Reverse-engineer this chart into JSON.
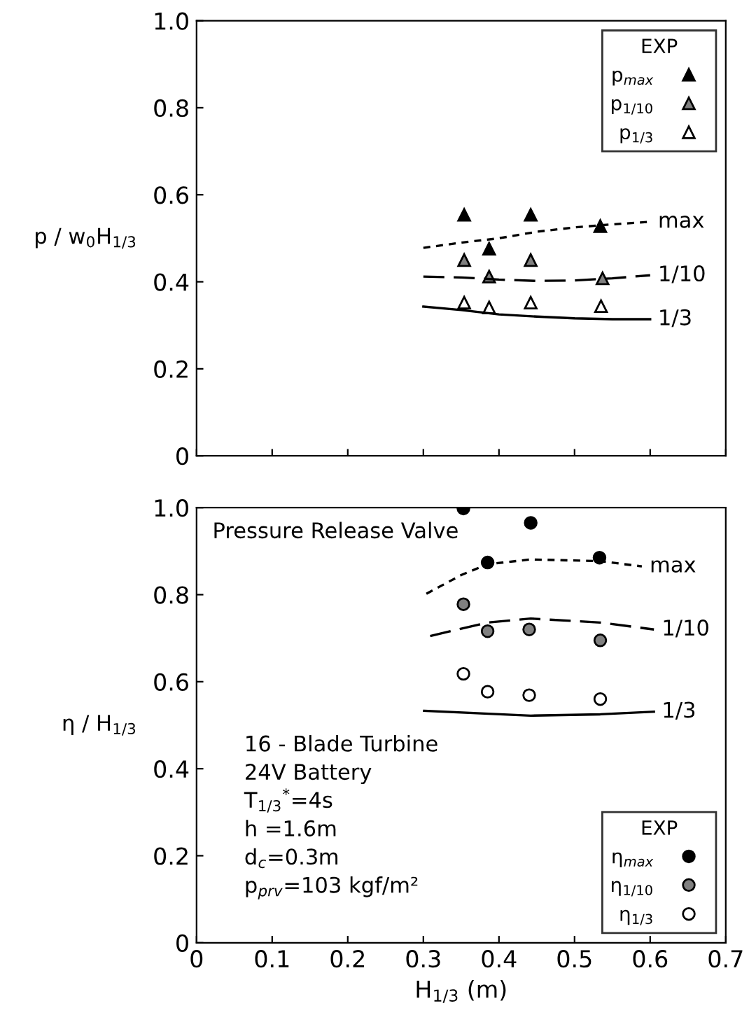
{
  "chart_data": [
    {
      "type": "scatter",
      "ylabel": "p / w$_{0}$H$_{1/3}$",
      "xlim": [
        0,
        0.7
      ],
      "xticks": [
        0,
        0.1,
        0.2,
        0.3,
        0.4,
        0.5,
        0.6,
        0.7
      ],
      "ylim": [
        0,
        1.0
      ],
      "yticks": [
        0,
        0.2,
        0.4,
        0.6,
        0.8,
        {
          "value": 1.0,
          "label": "1.0"
        }
      ],
      "tick_labels": "y",
      "grid": false,
      "legend": "top right",
      "legend_title": "EXP",
      "series": [
        {
          "name": "p$_{max}$",
          "color": "#000000",
          "marker": "triangle",
          "x": [
            0.354,
            0.387,
            0.442,
            0.534
          ],
          "values": [
            0.554,
            0.476,
            0.554,
            0.528
          ]
        },
        {
          "name": "p$_{1/10}$",
          "color": "#808080",
          "marker": "triangle",
          "x": [
            0.354,
            0.387,
            0.442,
            0.537
          ],
          "values": [
            0.45,
            0.412,
            0.45,
            0.408
          ]
        },
        {
          "name": "p$_{1/3}$",
          "color": "#ffffff",
          "marker": "triangle",
          "x": [
            0.354,
            0.387,
            0.442,
            0.535
          ],
          "values": [
            0.352,
            0.341,
            0.352,
            0.344
          ]
        },
        {
          "type": "line",
          "color": "#000000",
          "line_style": "dotted",
          "x": [
            0.3,
            0.35,
            0.4,
            0.45,
            0.5,
            0.55,
            0.6
          ],
          "values": [
            0.478,
            0.49,
            0.5,
            0.515,
            0.525,
            0.532,
            0.538
          ]
        },
        {
          "type": "line",
          "color": "#000000",
          "line_style": "dashed",
          "x": [
            0.3,
            0.35,
            0.4,
            0.45,
            0.5,
            0.55,
            0.6
          ],
          "values": [
            0.412,
            0.41,
            0.405,
            0.402,
            0.403,
            0.408,
            0.415
          ]
        },
        {
          "type": "line",
          "color": "#000000",
          "line_style": "solid",
          "x": [
            0.3,
            0.35,
            0.4,
            0.45,
            0.5,
            0.55,
            0.6
          ],
          "values": [
            0.343,
            0.335,
            0.325,
            0.32,
            0.316,
            0.314,
            0.314
          ]
        }
      ],
      "annotations": [
        {
          "text": "max",
          "x": 0.6,
          "y": 0.538
        },
        {
          "text": "1/10",
          "x": 0.6,
          "y": 0.415
        },
        {
          "text": "1/3",
          "x": 0.6,
          "y": 0.314
        }
      ]
    },
    {
      "type": "scatter",
      "ylabel": "η / H$_{1/3}$",
      "xlabel": "H$_{1/3}$ (m)",
      "xlim": [
        0,
        0.7
      ],
      "xticks": [
        0,
        0.1,
        0.2,
        0.3,
        0.4,
        0.5,
        0.6,
        0.7
      ],
      "ylim": [
        0,
        1.0
      ],
      "yticks": [
        0,
        0.2,
        0.4,
        0.6,
        0.8,
        {
          "value": 1.0,
          "label": "1.0"
        }
      ],
      "grid": false,
      "legend": "bottom right",
      "legend_title": "EXP",
      "series": [
        {
          "name": "η$_{max}$",
          "color": "#000000",
          "marker": "circle",
          "x": [
            0.353,
            0.385,
            0.442,
            0.533
          ],
          "values": [
            0.998,
            0.874,
            0.965,
            0.885
          ]
        },
        {
          "name": "η$_{1/10}$",
          "color": "#808080",
          "marker": "circle",
          "x": [
            0.353,
            0.385,
            0.44,
            0.534
          ],
          "values": [
            0.778,
            0.716,
            0.72,
            0.695
          ]
        },
        {
          "name": "η$_{1/3}$",
          "color": "#ffffff",
          "marker": "circle",
          "x": [
            0.353,
            0.385,
            0.44,
            0.534
          ],
          "values": [
            0.618,
            0.577,
            0.569,
            0.56
          ]
        },
        {
          "type": "line",
          "color": "#000000",
          "line_style": "dotted",
          "x": [
            0.304,
            0.35,
            0.385,
            0.442,
            0.534,
            0.589
          ],
          "values": [
            0.802,
            0.845,
            0.87,
            0.881,
            0.877,
            0.865
          ]
        },
        {
          "type": "line",
          "color": "#000000",
          "line_style": "dashed",
          "x": [
            0.309,
            0.385,
            0.442,
            0.534,
            0.605
          ],
          "values": [
            0.705,
            0.736,
            0.745,
            0.736,
            0.72
          ]
        },
        {
          "type": "line",
          "color": "#000000",
          "line_style": "solid",
          "x": [
            0.301,
            0.442,
            0.534,
            0.605
          ],
          "values": [
            0.533,
            0.522,
            0.525,
            0.531
          ]
        }
      ],
      "annotations": [
        {
          "text": "max",
          "x": 0.589,
          "y": 0.865
        },
        {
          "text": "1/10",
          "x": 0.605,
          "y": 0.72
        },
        {
          "text": "1/3",
          "x": 0.605,
          "y": 0.531
        },
        "Pressure Release Valve",
        "16 - Blade Turbine",
        "24V Battery",
        "T$_{1/3}$$^{*}$=4s",
        "h =1.6m",
        "d$_{c}$=0.3m",
        "p$_{prv}$=103 kgf/m²"
      ]
    }
  ]
}
